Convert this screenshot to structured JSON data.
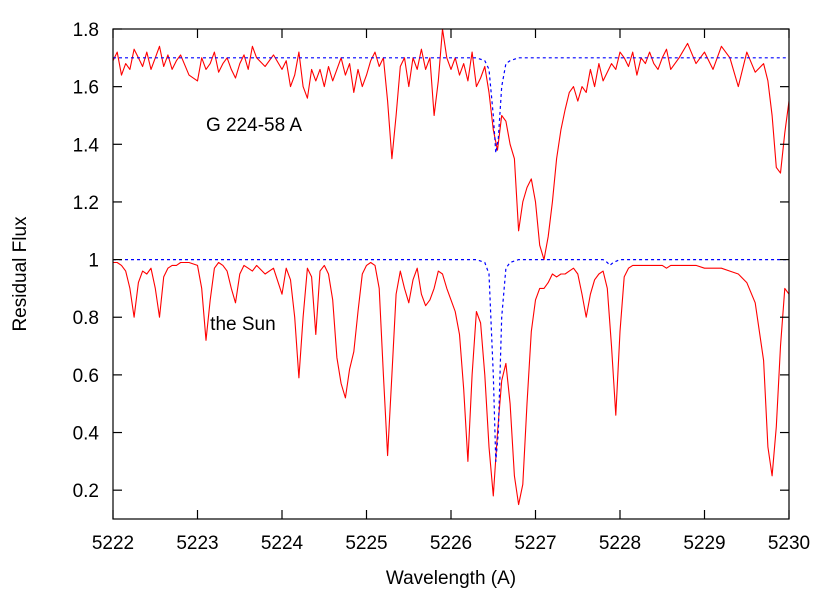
{
  "chart_data": {
    "type": "line",
    "title": "",
    "xlabel": "Wavelength (A)",
    "ylabel": "Residual Flux",
    "xlim": [
      5222,
      5230
    ],
    "ylim": [
      0.1,
      1.8
    ],
    "grid": false,
    "x_ticks": [
      5222,
      5223,
      5224,
      5225,
      5226,
      5227,
      5228,
      5229,
      5230
    ],
    "x_tick_labels": [
      "5222",
      "5223",
      "5224",
      "5225",
      "5226",
      "5227",
      "5228",
      "5229",
      "5230"
    ],
    "y_ticks": [
      0.2,
      0.4,
      0.6,
      0.8,
      1.0,
      1.2,
      1.4,
      1.6,
      1.8
    ],
    "y_tick_labels": [
      "0.2",
      "0.4",
      "0.6",
      "0.8",
      "1",
      "1.2",
      "1.4",
      "1.6",
      "1.8"
    ],
    "annotations": [
      {
        "text": "G 224-58 A",
        "x": 5223.1,
        "y": 1.47
      },
      {
        "text": "the Sun",
        "x": 5223.15,
        "y": 0.78
      }
    ],
    "series": [
      {
        "color": "#ff0000",
        "style": "solid",
        "x": [
          5222.0,
          5222.05,
          5222.1,
          5222.15,
          5222.2,
          5222.25,
          5222.3,
          5222.35,
          5222.4,
          5222.45,
          5222.5,
          5222.55,
          5222.6,
          5222.65,
          5222.7,
          5222.75,
          5222.8,
          5222.9,
          5223.0,
          5223.05,
          5223.1,
          5223.15,
          5223.2,
          5223.25,
          5223.3,
          5223.35,
          5223.4,
          5223.45,
          5223.5,
          5223.55,
          5223.6,
          5223.65,
          5223.7,
          5223.8,
          5223.9,
          5224.0,
          5224.05,
          5224.1,
          5224.15,
          5224.2,
          5224.25,
          5224.3,
          5224.35,
          5224.4,
          5224.45,
          5224.5,
          5224.55,
          5224.6,
          5224.65,
          5224.7,
          5224.75,
          5224.8,
          5224.85,
          5224.9,
          5224.95,
          5225.0,
          5225.05,
          5225.1,
          5225.15,
          5225.2,
          5225.25,
          5225.3,
          5225.35,
          5225.4,
          5225.45,
          5225.5,
          5225.55,
          5225.6,
          5225.65,
          5225.7,
          5225.75,
          5225.8,
          5225.85,
          5225.9,
          5225.95,
          5226.0,
          5226.05,
          5226.1,
          5226.15,
          5226.2,
          5226.25,
          5226.3,
          5226.35,
          5226.4,
          5226.45,
          5226.5,
          5226.55,
          5226.6,
          5226.65,
          5226.7,
          5226.75,
          5226.8,
          5226.85,
          5226.9,
          5226.95,
          5227.0,
          5227.05,
          5227.1,
          5227.15,
          5227.2,
          5227.25,
          5227.3,
          5227.35,
          5227.4,
          5227.45,
          5227.5,
          5227.55,
          5227.6,
          5227.65,
          5227.7,
          5227.75,
          5227.8,
          5227.85,
          5227.9,
          5227.95,
          5228.0,
          5228.05,
          5228.1,
          5228.15,
          5228.2,
          5228.25,
          5228.3,
          5228.35,
          5228.4,
          5228.45,
          5228.5,
          5228.55,
          5228.6,
          5228.7,
          5228.8,
          5228.9,
          5229.0,
          5229.1,
          5229.2,
          5229.3,
          5229.4,
          5229.5,
          5229.6,
          5229.7,
          5229.75,
          5229.8,
          5229.85,
          5229.9,
          5229.95,
          5230.0
        ],
        "y": [
          0.99,
          0.99,
          0.98,
          0.96,
          0.9,
          0.8,
          0.92,
          0.96,
          0.95,
          0.97,
          0.9,
          0.8,
          0.94,
          0.97,
          0.98,
          0.98,
          0.99,
          0.99,
          0.98,
          0.9,
          0.72,
          0.86,
          0.97,
          0.99,
          0.98,
          0.96,
          0.9,
          0.85,
          0.95,
          0.98,
          0.97,
          0.96,
          0.98,
          0.95,
          0.97,
          0.88,
          0.97,
          0.93,
          0.8,
          0.59,
          0.8,
          0.97,
          0.94,
          0.74,
          0.96,
          0.98,
          0.95,
          0.86,
          0.66,
          0.57,
          0.52,
          0.62,
          0.68,
          0.82,
          0.95,
          0.98,
          0.99,
          0.98,
          0.9,
          0.6,
          0.32,
          0.6,
          0.88,
          0.96,
          0.9,
          0.85,
          0.93,
          0.97,
          0.88,
          0.84,
          0.86,
          0.9,
          0.96,
          0.95,
          0.9,
          0.86,
          0.82,
          0.74,
          0.55,
          0.3,
          0.6,
          0.82,
          0.78,
          0.6,
          0.35,
          0.18,
          0.4,
          0.58,
          0.64,
          0.5,
          0.25,
          0.15,
          0.22,
          0.5,
          0.75,
          0.86,
          0.9,
          0.9,
          0.92,
          0.95,
          0.94,
          0.95,
          0.95,
          0.96,
          0.97,
          0.95,
          0.88,
          0.8,
          0.88,
          0.93,
          0.95,
          0.96,
          0.9,
          0.7,
          0.46,
          0.75,
          0.94,
          0.97,
          0.98,
          0.98,
          0.98,
          0.98,
          0.98,
          0.98,
          0.98,
          0.98,
          0.97,
          0.98,
          0.98,
          0.98,
          0.98,
          0.97,
          0.97,
          0.97,
          0.96,
          0.95,
          0.92,
          0.85,
          0.65,
          0.35,
          0.25,
          0.42,
          0.7,
          0.9,
          0.88
        ]
      },
      {
        "color": "#ff0000",
        "style": "solid",
        "x": [
          5222.0,
          5222.05,
          5222.1,
          5222.15,
          5222.2,
          5222.25,
          5222.3,
          5222.35,
          5222.4,
          5222.45,
          5222.5,
          5222.55,
          5222.6,
          5222.65,
          5222.7,
          5222.75,
          5222.8,
          5222.9,
          5223.0,
          5223.05,
          5223.1,
          5223.15,
          5223.2,
          5223.25,
          5223.3,
          5223.35,
          5223.4,
          5223.45,
          5223.5,
          5223.55,
          5223.6,
          5223.65,
          5223.7,
          5223.8,
          5223.9,
          5224.0,
          5224.05,
          5224.1,
          5224.15,
          5224.2,
          5224.25,
          5224.3,
          5224.35,
          5224.4,
          5224.45,
          5224.5,
          5224.55,
          5224.6,
          5224.65,
          5224.7,
          5224.75,
          5224.8,
          5224.85,
          5224.9,
          5224.95,
          5225.0,
          5225.05,
          5225.1,
          5225.15,
          5225.2,
          5225.25,
          5225.3,
          5225.35,
          5225.4,
          5225.45,
          5225.5,
          5225.55,
          5225.6,
          5225.65,
          5225.7,
          5225.75,
          5225.8,
          5225.85,
          5225.9,
          5225.95,
          5226.0,
          5226.05,
          5226.1,
          5226.15,
          5226.2,
          5226.25,
          5226.3,
          5226.35,
          5226.4,
          5226.45,
          5226.5,
          5226.55,
          5226.6,
          5226.65,
          5226.7,
          5226.75,
          5226.8,
          5226.85,
          5226.9,
          5226.95,
          5227.0,
          5227.05,
          5227.1,
          5227.15,
          5227.2,
          5227.25,
          5227.3,
          5227.35,
          5227.4,
          5227.45,
          5227.5,
          5227.55,
          5227.6,
          5227.65,
          5227.7,
          5227.75,
          5227.8,
          5227.85,
          5227.9,
          5227.95,
          5228.0,
          5228.05,
          5228.1,
          5228.15,
          5228.2,
          5228.25,
          5228.3,
          5228.35,
          5228.4,
          5228.45,
          5228.5,
          5228.55,
          5228.6,
          5228.7,
          5228.8,
          5228.9,
          5229.0,
          5229.1,
          5229.2,
          5229.3,
          5229.4,
          5229.5,
          5229.6,
          5229.7,
          5229.75,
          5229.8,
          5229.85,
          5229.9,
          5229.95,
          5230.0
        ],
        "y": [
          1.69,
          1.72,
          1.64,
          1.68,
          1.66,
          1.73,
          1.7,
          1.67,
          1.72,
          1.66,
          1.7,
          1.74,
          1.67,
          1.71,
          1.66,
          1.69,
          1.71,
          1.64,
          1.62,
          1.7,
          1.66,
          1.68,
          1.72,
          1.65,
          1.68,
          1.7,
          1.66,
          1.63,
          1.68,
          1.71,
          1.66,
          1.74,
          1.7,
          1.67,
          1.71,
          1.66,
          1.69,
          1.6,
          1.64,
          1.72,
          1.6,
          1.56,
          1.66,
          1.62,
          1.66,
          1.6,
          1.67,
          1.62,
          1.66,
          1.7,
          1.64,
          1.68,
          1.58,
          1.66,
          1.6,
          1.64,
          1.69,
          1.72,
          1.67,
          1.7,
          1.55,
          1.35,
          1.5,
          1.67,
          1.7,
          1.6,
          1.7,
          1.66,
          1.73,
          1.66,
          1.7,
          1.5,
          1.62,
          1.8,
          1.7,
          1.66,
          1.7,
          1.64,
          1.68,
          1.62,
          1.72,
          1.6,
          1.63,
          1.67,
          1.58,
          1.45,
          1.38,
          1.5,
          1.48,
          1.4,
          1.35,
          1.1,
          1.2,
          1.25,
          1.28,
          1.2,
          1.05,
          1.0,
          1.08,
          1.2,
          1.35,
          1.45,
          1.52,
          1.58,
          1.6,
          1.55,
          1.6,
          1.58,
          1.66,
          1.6,
          1.68,
          1.62,
          1.65,
          1.68,
          1.66,
          1.72,
          1.7,
          1.67,
          1.72,
          1.64,
          1.7,
          1.68,
          1.72,
          1.68,
          1.66,
          1.7,
          1.73,
          1.66,
          1.7,
          1.75,
          1.68,
          1.72,
          1.66,
          1.74,
          1.7,
          1.6,
          1.72,
          1.65,
          1.68,
          1.62,
          1.5,
          1.32,
          1.3,
          1.44,
          1.55
        ]
      },
      {
        "color": "#0000ff",
        "style": "dotted",
        "x": [
          5222.0,
          5226.3,
          5226.4,
          5226.45,
          5226.5,
          5226.53,
          5226.56,
          5226.6,
          5226.65,
          5226.7,
          5226.8,
          5227.8,
          5227.85,
          5227.88,
          5227.92,
          5228.0,
          5230.0
        ],
        "y": [
          1.0,
          1.0,
          0.99,
          0.95,
          0.6,
          0.3,
          0.4,
          0.8,
          0.97,
          0.99,
          1.0,
          1.0,
          0.99,
          0.98,
          0.99,
          1.0,
          1.0
        ]
      },
      {
        "color": "#0000ff",
        "style": "dotted",
        "x": [
          5222.0,
          5226.3,
          5226.4,
          5226.45,
          5226.5,
          5226.53,
          5226.56,
          5226.6,
          5226.65,
          5226.7,
          5226.8,
          5230.0
        ],
        "y": [
          1.7,
          1.7,
          1.69,
          1.66,
          1.5,
          1.37,
          1.42,
          1.6,
          1.68,
          1.69,
          1.7,
          1.7
        ]
      }
    ]
  }
}
